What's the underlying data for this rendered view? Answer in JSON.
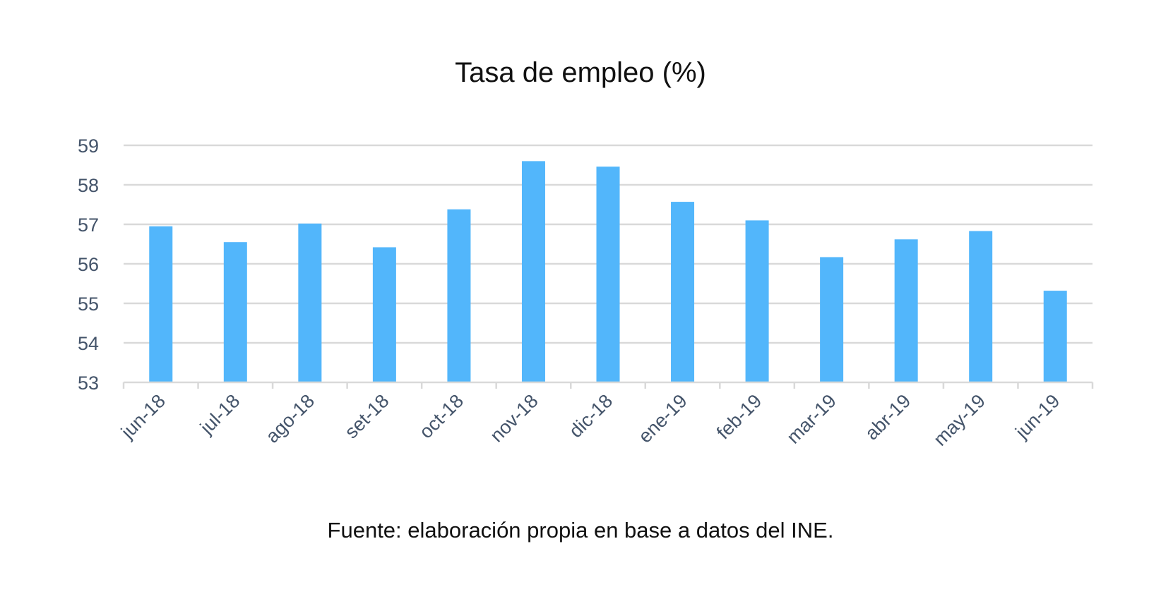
{
  "chart_data": {
    "type": "bar",
    "title": "Tasa de empleo (%)",
    "source": "Fuente: elaboración propia en base a datos del INE.",
    "categories": [
      "jun-18",
      "jul-18",
      "ago-18",
      "set-18",
      "oct-18",
      "nov-18",
      "dic-18",
      "ene-19",
      "feb-19",
      "mar-19",
      "abr-19",
      "may-19",
      "jun-19"
    ],
    "values": [
      56.95,
      56.55,
      57.02,
      56.42,
      57.38,
      58.6,
      58.46,
      57.57,
      57.1,
      56.17,
      56.62,
      56.83,
      55.32
    ],
    "yticks": [
      53,
      54,
      55,
      56,
      57,
      58,
      59
    ],
    "ylim": [
      53,
      59
    ],
    "xlabel": "",
    "ylabel": "",
    "grid": true,
    "legend": "none",
    "colors": {
      "bar": "#52b6fb",
      "grid": "#d9d9d9",
      "axis": "#d9d9d9",
      "tick_text": "#44546a",
      "title_text": "#111111"
    }
  }
}
